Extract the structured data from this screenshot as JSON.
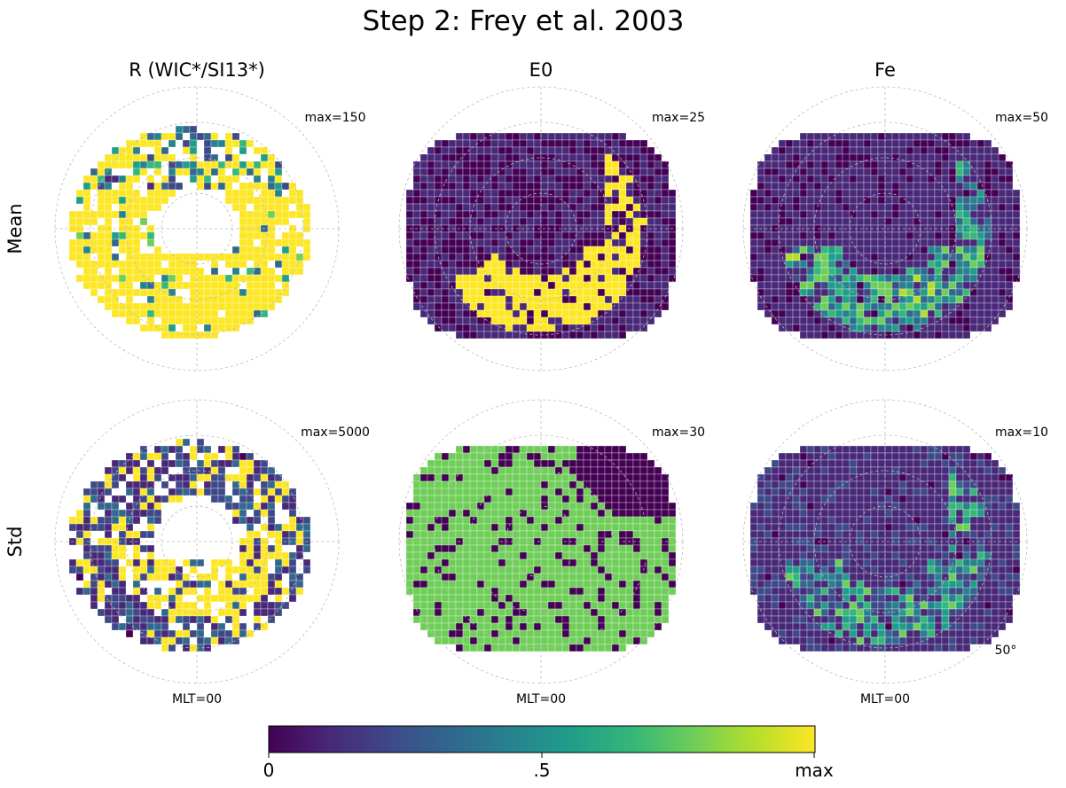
{
  "chart_data": {
    "type": "heatmap",
    "title": "Step 2: Frey et al. 2003",
    "columns": [
      "R (WIC*/SI13*)",
      "E0",
      "Fe"
    ],
    "rows": [
      "Mean",
      "Std"
    ],
    "projection": "polar",
    "grid": true,
    "panels": [
      {
        "row": "Mean",
        "column": "R (WIC*/SI13*)",
        "max_label": "max=150",
        "max": 150,
        "fill": "sparse",
        "dominant": "yellow"
      },
      {
        "row": "Mean",
        "column": "E0",
        "max_label": "max=25",
        "max": 25,
        "fill": "full",
        "dominant": "purple",
        "notes": "yellow band on lower/dawn side"
      },
      {
        "row": "Mean",
        "column": "Fe",
        "max_label": "max=50",
        "max": 50,
        "fill": "full",
        "dominant": "purple",
        "notes": "green/teal band on lower side"
      },
      {
        "row": "Std",
        "column": "R (WIC*/SI13*)",
        "max_label": "max=5000",
        "max": 5000,
        "fill": "sparse",
        "dominant": "mixed",
        "notes": "yellow center, purple ring"
      },
      {
        "row": "Std",
        "column": "E0",
        "max_label": "max=30",
        "max": 30,
        "fill": "full",
        "dominant": "light-green",
        "notes": "purple upper-right corner"
      },
      {
        "row": "Std",
        "column": "Fe",
        "max_label": "max=10",
        "max": 10,
        "fill": "full",
        "dominant": "purple",
        "notes": "teal/green band lower side"
      }
    ],
    "mlt_label": "MLT=00",
    "lat_label": "50°",
    "colorbar": {
      "colormap": "viridis",
      "ticks": [
        "0",
        ".5",
        "max"
      ]
    }
  },
  "colors": {
    "viridis": [
      "#440154",
      "#482878",
      "#3e4989",
      "#31688e",
      "#26828e",
      "#1f9e89",
      "#35b779",
      "#6ece58",
      "#b5de2b",
      "#fde725"
    ],
    "grid": "#bbbbbb",
    "cell_border": "#ffffff"
  }
}
